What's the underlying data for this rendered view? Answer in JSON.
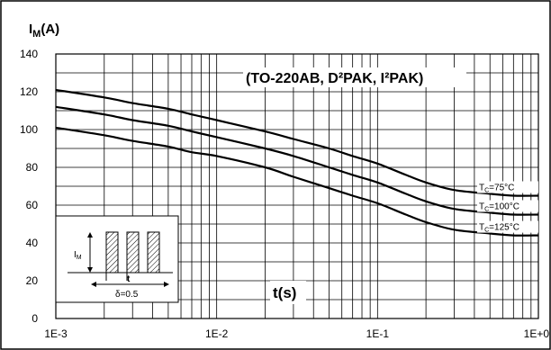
{
  "chart_data": {
    "type": "line",
    "title": "(TO-220AB, D²PAK, I²PAK)",
    "ylabel": {
      "main": "I",
      "sub": "M",
      "unit": "(A)"
    },
    "xlabel": "t(s)",
    "xscale": "log",
    "xlim": [
      0.001,
      1
    ],
    "ylim": [
      0,
      140
    ],
    "x_ticks": [
      {
        "value": 0.001,
        "label": "1E-3"
      },
      {
        "value": 0.01,
        "label": "1E-2"
      },
      {
        "value": 0.1,
        "label": "1E-1"
      },
      {
        "value": 1,
        "label": "1E+0"
      }
    ],
    "y_ticks": [
      {
        "value": 0,
        "label": "0"
      },
      {
        "value": 20,
        "label": "20"
      },
      {
        "value": 40,
        "label": "40"
      },
      {
        "value": 60,
        "label": "60"
      },
      {
        "value": 80,
        "label": "80"
      },
      {
        "value": 100,
        "label": "100"
      },
      {
        "value": 120,
        "label": "120"
      },
      {
        "value": 140,
        "label": "140"
      }
    ],
    "grid": true,
    "series": [
      {
        "name": "Tc=75°C",
        "label_parts": [
          "T",
          "C",
          "=75°C"
        ],
        "x": [
          0.001,
          0.002,
          0.003,
          0.005,
          0.007,
          0.01,
          0.02,
          0.03,
          0.05,
          0.07,
          0.1,
          0.15,
          0.2,
          0.3,
          0.5,
          0.7,
          1.0
        ],
        "y": [
          121,
          117,
          114,
          111,
          108,
          105,
          99,
          95,
          90,
          86,
          82,
          76,
          72,
          68,
          66,
          65,
          65
        ]
      },
      {
        "name": "Tc=100°C",
        "label_parts": [
          "T",
          "C",
          "=100°C"
        ],
        "x": [
          0.001,
          0.002,
          0.003,
          0.005,
          0.007,
          0.01,
          0.02,
          0.03,
          0.05,
          0.07,
          0.1,
          0.15,
          0.2,
          0.3,
          0.5,
          0.7,
          1.0
        ],
        "y": [
          112,
          108,
          105,
          102,
          99,
          96,
          90,
          86,
          80,
          76,
          72,
          66,
          62,
          58,
          56,
          55,
          55
        ]
      },
      {
        "name": "Tc=125°C",
        "label_parts": [
          "T",
          "C",
          "=125°C"
        ],
        "x": [
          0.001,
          0.002,
          0.003,
          0.005,
          0.007,
          0.01,
          0.02,
          0.03,
          0.05,
          0.07,
          0.1,
          0.15,
          0.2,
          0.3,
          0.5,
          0.7,
          1.0
        ],
        "y": [
          101,
          97,
          94,
          91,
          88,
          86,
          80,
          75,
          69,
          65,
          61,
          55,
          51,
          47,
          45,
          44,
          44
        ]
      }
    ],
    "inset": {
      "current_label": {
        "main": "I",
        "sub": "M"
      },
      "period_label": "t",
      "duty_label": "δ=0.5"
    }
  }
}
